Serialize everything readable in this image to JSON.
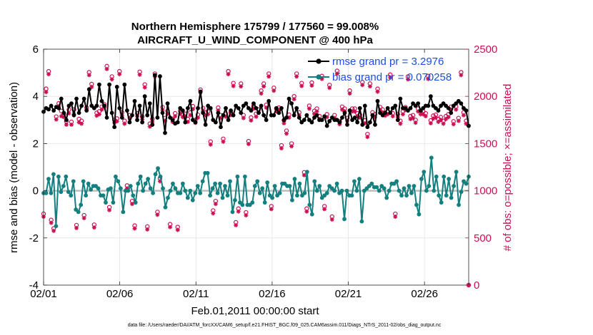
{
  "chart_data": {
    "type": "line",
    "title_line1": "Northern Hemisphere 175799 / 177560 = 99.008%",
    "title_line2": "AIRCRAFT_U_WIND_COMPONENT @ 400 hPa",
    "xlabel": "Feb.01,2011 00:00:00 start",
    "ylabel": "rmse and bias (model - observation)",
    "ylabel_right": "# of obs: o=possible; ×=assimilated",
    "footnote": "data file: /Users/raeder/DAI/ATM_forcXX/CAM6_setup/f.e21.FHIST_BGC.f09_025.CAM6assim.011/Diags_NTrS_2011-02/obs_diag_output.nc",
    "xlim": [
      1,
      28.9
    ],
    "ylim": [
      -4,
      6
    ],
    "ylim_right": [
      0,
      2500
    ],
    "x_tick_values": [
      1,
      6,
      11,
      16,
      21,
      26
    ],
    "x_tick_labels": [
      "02/01",
      "02/06",
      "02/11",
      "02/16",
      "02/21",
      "02/26"
    ],
    "y_tick_values": [
      -4,
      -2,
      0,
      2,
      4,
      6
    ],
    "y_tick_labels": [
      "-4",
      "-2",
      "0",
      "2",
      "4",
      "6"
    ],
    "y_right_tick_values": [
      0,
      500,
      1000,
      1500,
      2000,
      2500
    ],
    "y_right_tick_labels": [
      "0",
      "500",
      "1000",
      "1500",
      "2000",
      "2500"
    ],
    "colors": {
      "rmse": "#000000",
      "bias": "#137f7f",
      "counts": "#cc0f52",
      "legend_text": "#1b4fe0",
      "zero_line": "#bdbdbd",
      "grid": "#e3e3e3"
    },
    "series": [
      {
        "name": "rmse",
        "legend": "rmse grand pr = 3.2976",
        "values": [
          3.35,
          3.5,
          3.45,
          3.6,
          3.4,
          3.55,
          3.5,
          3.9,
          3.3,
          3.0,
          3.6,
          3.7,
          3.2,
          3.9,
          3.3,
          3.6,
          3.9,
          3.4,
          4.3,
          3.6,
          3.5,
          3.6,
          4.5,
          3.8,
          3.6,
          3.1,
          4.5,
          3.3,
          2.7,
          4.4,
          3.5,
          3.1,
          4.5,
          3.4,
          2.9,
          3.2,
          3.8,
          3.0,
          3.6,
          2.9,
          4.0,
          3.2,
          3.7,
          2.8,
          4.9,
          3.1,
          4.85,
          3.3,
          2.45,
          3.7,
          3.1,
          3.0,
          2.85,
          2.9,
          3.5,
          3.4,
          2.9,
          3.5,
          3.8,
          3.0,
          2.9,
          3.5,
          4.2,
          3.3,
          2.8,
          3.6,
          3.5,
          3.0,
          2.9,
          3.3,
          2.7,
          3.2,
          3.5,
          3.0,
          3.4,
          3.2,
          3.6,
          3.5,
          3.3,
          3.6,
          3.7,
          3.5,
          3.4,
          3.7,
          3.5,
          3.3,
          3.6,
          3.2,
          3.0,
          3.8,
          3.2,
          3.2,
          3.5,
          3.3,
          3.5,
          3.0,
          3.1,
          3.9,
          3.7,
          3.2,
          3.5,
          3.1,
          2.9,
          3.0,
          3.2,
          3.0,
          2.9,
          3.1,
          3.2,
          3.0,
          3.0,
          3.15,
          2.75,
          2.95,
          3.1,
          3.0,
          3.0,
          2.9,
          3.1,
          3.3,
          2.8,
          3.4,
          3.0,
          3.1,
          2.9,
          3.5,
          2.8,
          3.6,
          2.7,
          2.9,
          3.2,
          2.8,
          3.8,
          3.3,
          3.2,
          3.3,
          3.5,
          3.3,
          3.5,
          3.6,
          3.0,
          3.9,
          3.5,
          3.5,
          3.4,
          3.5,
          3.7,
          3.6,
          3.7,
          3.4,
          3.5,
          3.6,
          3.6,
          4.0,
          3.6,
          3.5,
          3.4,
          3.6,
          3.7,
          3.6,
          3.5,
          3.3,
          3.6,
          3.7,
          3.8,
          3.7,
          3.5,
          3.4,
          2.75
        ]
      },
      {
        "name": "bias",
        "legend": "bias grand pr = 0.070258",
        "values": [
          -0.1,
          -0.1,
          0.5,
          -0.1,
          0.7,
          -1.5,
          0.6,
          -0.05,
          0.2,
          0.6,
          -0.05,
          -0.2,
          0.4,
          -0.8,
          -0.9,
          -0.6,
          0.4,
          -0.2,
          0.3,
          0.05,
          0.2,
          0.2,
          0.1,
          -0.2,
          -0.2,
          -0.5,
          0.05,
          0.1,
          -0.5,
          0.6,
          0.4,
          0.1,
          -0.9,
          0.0,
          0.0,
          0.2,
          -0.2,
          -0.5,
          0.3,
          0.6,
          0.0,
          0.3,
          0.5,
          0.1,
          -0.1,
          0.7,
          0.95,
          0.6,
          0.1,
          -0.7,
          -0.3,
          0.0,
          0.3,
          0.1,
          -0.1,
          -0.1,
          0.3,
          0.0,
          -0.3,
          0.0,
          -0.4,
          -0.1,
          0.2,
          -0.1,
          0.4,
          0.75,
          0.75,
          -0.2,
          0.1,
          0.3,
          -0.1,
          0.3,
          -0.3,
          0.2,
          -0.2,
          0.4,
          -0.9,
          -0.4,
          0.6,
          -0.5,
          -0.6,
          0.6,
          -0.6,
          -0.6,
          -0.5,
          0.2,
          0.4,
          -0.1,
          0.1,
          -0.5,
          0.35,
          -0.2,
          -0.3,
          0.2,
          -0.2,
          -0.1,
          0.3,
          0.3,
          0.2,
          0.2,
          -0.4,
          0.5,
          -0.2,
          0.3,
          -0.2,
          -0.1,
          0.8,
          -0.6,
          -1.0,
          0.4,
          0.0,
          0.2,
          -0.3,
          -0.2,
          -0.1,
          0.2,
          0.1,
          0.0,
          0.3,
          -0.1,
          0.0,
          -1.2,
          0.0,
          -0.2,
          -0.2,
          0.4,
          0.0,
          0.5,
          -1.3,
          0.0,
          0.1,
          0.2,
          0.3,
          0.15,
          0.15,
          0.0,
          0.2,
          0.1,
          -0.3,
          0.0,
          0.3,
          0.3,
          0.4,
          0.0,
          -0.2,
          0.1,
          -0.2,
          0.2,
          -0.1,
          0.2,
          -0.6,
          -1.0,
          0.5,
          0.8,
          0.0,
          0.2,
          1.4,
          0.0,
          0.6,
          -0.2,
          -0.5,
          0.6,
          -0.2,
          0.5,
          -0.3,
          0.2,
          0.8,
          -0.6,
          -0.05,
          0.4,
          0.3,
          0.6
        ]
      }
    ],
    "assimilated_counts": [
      725,
      2045,
      2235,
      660,
      575,
      1755,
      1895,
      1790,
      1780,
      1700,
      1820,
      1700,
      1810,
      605,
      1725,
      1710,
      710,
      1855,
      2225,
      2100,
      610,
      1795,
      1810,
      1860,
      1885,
      2290,
      795,
      2180,
      1720,
      1735,
      2235,
      1800,
      1710,
      1025,
      1770,
      860,
      600,
      1790,
      2230,
      1755,
      2095,
      590,
      1680,
      1730,
      2210,
      745,
      1100,
      1855,
      1740,
      1815,
      615,
      1730,
      1790,
      585,
      1815,
      1780,
      1785,
      1730,
      1800,
      1865,
      1720,
      1775,
      2040,
      1845,
      1800,
      1810,
      1490,
      760,
      860,
      1850,
      1770,
      1520,
      1785,
      2235,
      1800,
      2110,
      635,
      780,
      2105,
      1770,
      740,
      1495,
      1745,
      1870,
      1785,
      1830,
      2030,
      2105,
      1880,
      2210,
      805,
      2060,
      1840,
      1850,
      1450,
      1715,
      1605,
      1775,
      1470,
      1970,
      2210,
      1800,
      2110,
      1165,
      780,
      1870,
      2115,
      1815,
      1840,
      1760,
      2185,
      805,
      1780,
      2090,
      695,
      1770,
      2240,
      1705,
      1860,
      1840,
      1740,
      2030,
      1840,
      1840,
      1790,
      1775,
      2120,
      1715,
      1570,
      2105,
      1800,
      1780,
      2050,
      1855,
      1830,
      1795,
      1810,
      2200,
      1790,
      725,
      1780,
      1710,
      1810,
      1855,
      2180,
      1760,
      1770,
      1720,
      1840,
      1810,
      1810,
      1790,
      2185,
      1715,
      1765,
      1775,
      1730,
      1750,
      1710,
      1760,
      1780,
      1860,
      1705,
      1860,
      1740,
      2225,
      1800,
      1710,
      0
    ],
    "possible_counts": [
      755,
      2080,
      2265,
      690,
      600,
      1785,
      1925,
      1845,
      1810,
      1735,
      1860,
      1730,
      1860,
      635,
      1760,
      1740,
      740,
      1880,
      2255,
      2130,
      640,
      1825,
      1840,
      1890,
      1915,
      2320,
      825,
      2210,
      1750,
      1765,
      2265,
      1830,
      1740,
      1055,
      1800,
      890,
      630,
      1820,
      2260,
      1785,
      2125,
      620,
      1710,
      1760,
      2240,
      775,
      1130,
      1885,
      1770,
      1845,
      645,
      1760,
      1820,
      615,
      1845,
      1810,
      1815,
      1760,
      1830,
      1895,
      1750,
      1805,
      2070,
      1875,
      1830,
      1840,
      1520,
      790,
      890,
      1880,
      1800,
      1550,
      1815,
      2265,
      1830,
      2140,
      665,
      810,
      2135,
      1800,
      770,
      1525,
      1775,
      1900,
      1815,
      1860,
      2060,
      2135,
      1910,
      2240,
      835,
      2090,
      1870,
      1880,
      1480,
      1745,
      1635,
      1805,
      1500,
      2000,
      2240,
      1830,
      2140,
      1195,
      810,
      1900,
      2145,
      1845,
      1870,
      1790,
      2215,
      835,
      1810,
      2120,
      725,
      1800,
      2270,
      1735,
      1890,
      1870,
      1770,
      2060,
      1870,
      1870,
      1820,
      1805,
      2150,
      1745,
      1600,
      2135,
      1830,
      1810,
      2080,
      1885,
      1860,
      1825,
      1840,
      2230,
      1820,
      755,
      1810,
      1740,
      1840,
      1885,
      2210,
      1790,
      1800,
      1750,
      1870,
      1840,
      1840,
      1820,
      2215,
      1745,
      1795,
      1805,
      1760,
      1780,
      1740,
      1790,
      1810,
      1890,
      1735,
      1890,
      1770,
      2255,
      1830,
      1740,
      0
    ]
  }
}
